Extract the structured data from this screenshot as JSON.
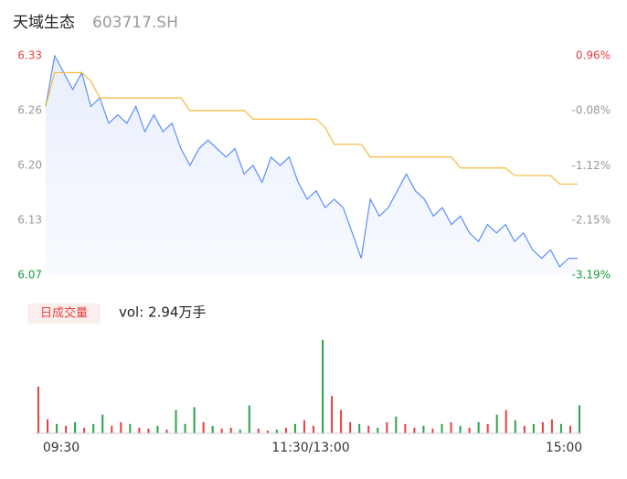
{
  "chart_data": {
    "type": "intraday",
    "title": "天域生态",
    "code": "603717.SH",
    "ylim": [
      6.07,
      6.33
    ],
    "yticks": [
      {
        "value": 6.07,
        "label": "6.07"
      },
      {
        "value": 6.135,
        "label": "6.13"
      },
      {
        "value": 6.2,
        "label": "6.20"
      },
      {
        "value": 6.265,
        "label": "6.26"
      },
      {
        "value": 6.33,
        "label": "6.33"
      }
    ],
    "y2lim": [
      -3.19,
      0.96
    ],
    "y2ticks": [
      {
        "value": -3.19,
        "label": "-3.19%"
      },
      {
        "value": -2.15,
        "label": "-2.15%"
      },
      {
        "value": -1.12,
        "label": "-1.12%"
      },
      {
        "value": -0.08,
        "label": "-0.08%"
      },
      {
        "value": 0.96,
        "label": "0.96%"
      }
    ],
    "xticks": [
      "09:30",
      "11:30/13:00",
      "15:00"
    ],
    "series": [
      {
        "name": "price",
        "color": "#5b8ff9",
        "values": [
          6.27,
          6.33,
          6.31,
          6.29,
          6.31,
          6.27,
          6.28,
          6.25,
          6.26,
          6.25,
          6.27,
          6.24,
          6.26,
          6.24,
          6.25,
          6.22,
          6.2,
          6.22,
          6.23,
          6.22,
          6.21,
          6.22,
          6.19,
          6.2,
          6.18,
          6.21,
          6.2,
          6.21,
          6.18,
          6.16,
          6.17,
          6.15,
          6.16,
          6.15,
          6.12,
          6.09,
          6.16,
          6.14,
          6.15,
          6.17,
          6.19,
          6.17,
          6.16,
          6.14,
          6.15,
          6.13,
          6.14,
          6.12,
          6.11,
          6.13,
          6.12,
          6.13,
          6.11,
          6.12,
          6.1,
          6.09,
          6.1,
          6.08,
          6.09,
          6.09
        ]
      },
      {
        "name": "avg",
        "color": "#f5b93b",
        "values": [
          6.27,
          6.31,
          6.31,
          6.31,
          6.31,
          6.3,
          6.28,
          6.28,
          6.28,
          6.28,
          6.28,
          6.28,
          6.28,
          6.28,
          6.28,
          6.28,
          6.265,
          6.265,
          6.265,
          6.265,
          6.265,
          6.265,
          6.265,
          6.255,
          6.255,
          6.255,
          6.255,
          6.255,
          6.255,
          6.255,
          6.255,
          6.245,
          6.225,
          6.225,
          6.225,
          6.225,
          6.21,
          6.21,
          6.21,
          6.21,
          6.21,
          6.21,
          6.21,
          6.21,
          6.21,
          6.21,
          6.197,
          6.197,
          6.197,
          6.197,
          6.197,
          6.197,
          6.188,
          6.188,
          6.188,
          6.188,
          6.188,
          6.178,
          6.178,
          6.178
        ]
      }
    ],
    "volume_label": "日成交量",
    "volume_total": "vol: 2.94万手",
    "volume": {
      "values": [
        50,
        15,
        10,
        8,
        12,
        6,
        10,
        20,
        8,
        12,
        10,
        6,
        5,
        8,
        4,
        25,
        10,
        28,
        12,
        8,
        5,
        6,
        4,
        30,
        5,
        3,
        4,
        6,
        10,
        14,
        8,
        100,
        40,
        25,
        12,
        10,
        8,
        6,
        12,
        18,
        10,
        6,
        8,
        5,
        10,
        12,
        8,
        6,
        12,
        10,
        20,
        25,
        14,
        8,
        10,
        12,
        15,
        10,
        8,
        30
      ],
      "colors": [
        "#e84040",
        "#e84040",
        "#2aa34a",
        "#e84040",
        "#2aa34a",
        "#e84040",
        "#2aa34a",
        "#2aa34a",
        "#e84040",
        "#e84040",
        "#2aa34a",
        "#e84040",
        "#e84040",
        "#2aa34a",
        "#e84040",
        "#2aa34a",
        "#2aa34a",
        "#2aa34a",
        "#e84040",
        "#2aa34a",
        "#e84040",
        "#e84040",
        "#2aa34a",
        "#2aa34a",
        "#e84040",
        "#e84040",
        "#2aa34a",
        "#e84040",
        "#2aa34a",
        "#e84040",
        "#e84040",
        "#2aa34a",
        "#e84040",
        "#e84040",
        "#e84040",
        "#2aa34a",
        "#e84040",
        "#2aa34a",
        "#e84040",
        "#2aa34a",
        "#e84040",
        "#e84040",
        "#2aa34a",
        "#e84040",
        "#2aa34a",
        "#e84040",
        "#2aa34a",
        "#e84040",
        "#2aa34a",
        "#e84040",
        "#2aa34a",
        "#e84040",
        "#2aa34a",
        "#e84040",
        "#2aa34a",
        "#e84040",
        "#e84040",
        "#2aa34a",
        "#e84040",
        "#2aa34a"
      ]
    }
  }
}
